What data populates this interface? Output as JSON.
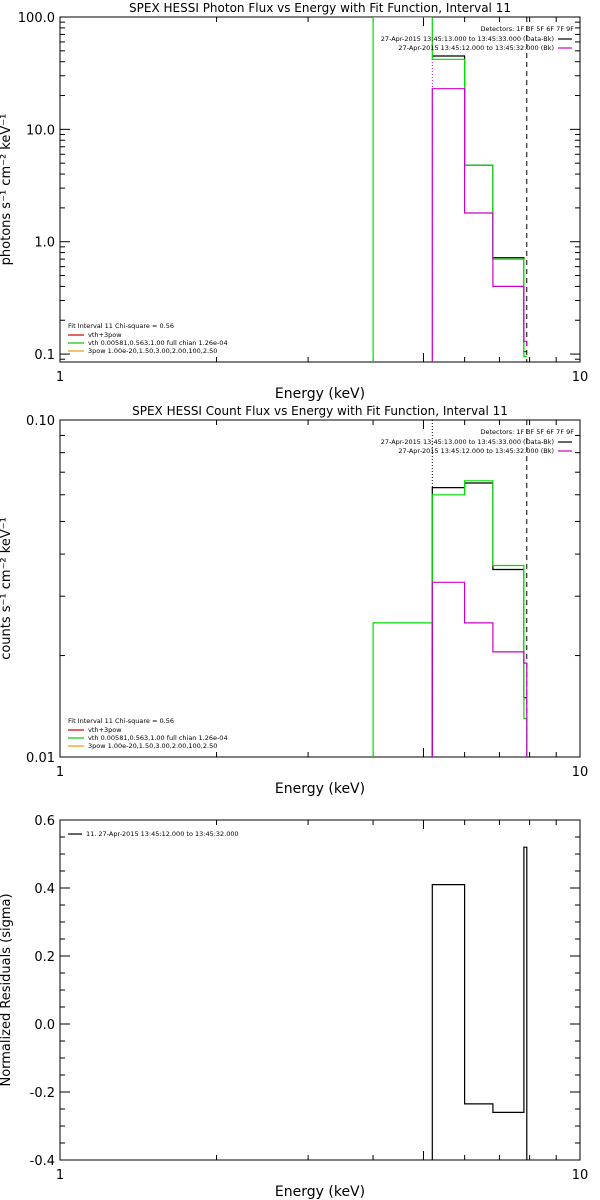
{
  "chart_data": [
    {
      "type": "line",
      "title": "SPEX HESSI Photon Flux vs Energy with Fit Function, Interval 11",
      "xlabel": "Energy (keV)",
      "ylabel": "photons s⁻¹ cm⁻² keV⁻¹",
      "xscale": "log",
      "yscale": "log",
      "xlim": [
        1,
        10
      ],
      "ylim": [
        0.085,
        100
      ],
      "grid": false,
      "xticks": [
        {
          "v": 1,
          "label": "1"
        },
        {
          "v": 10,
          "label": "10"
        }
      ],
      "yticks": [
        {
          "v": 0.1,
          "label": "0.1"
        },
        {
          "v": 1,
          "label": "1.0"
        },
        {
          "v": 10,
          "label": "10.0"
        },
        {
          "v": 100,
          "label": "100.0"
        }
      ],
      "vlines": [
        {
          "x": 5.2,
          "color": "#cc00cc",
          "dash": "dotted"
        },
        {
          "x": 7.9,
          "color": "#000000",
          "dash": "dashed"
        }
      ],
      "series": [
        {
          "color": "#000000",
          "x": [
            5.2,
            6,
            6,
            6.8,
            6.8,
            7.8,
            7.8,
            7.9
          ],
          "y": [
            45,
            45,
            4.8,
            4.8,
            0.72,
            0.72,
            0.105,
            0.105
          ]
        },
        {
          "color": "#00dd00",
          "x": [
            4.0,
            4.0,
            5.2,
            5.2,
            6,
            6,
            6.8,
            6.8,
            7.8,
            7.8,
            7.9
          ],
          "y": [
            0.085,
            100,
            100,
            42,
            42,
            4.8,
            4.8,
            0.7,
            0.7,
            0.095,
            0.095
          ]
        },
        {
          "color": "#cc00cc",
          "x": [
            5.2,
            5.2,
            6,
            6,
            6.8,
            6.8,
            7.8,
            7.8,
            7.9,
            7.9
          ],
          "y": [
            0.085,
            23,
            23,
            1.8,
            1.8,
            0.4,
            0.4,
            0.13,
            0.13,
            0.12
          ]
        }
      ],
      "legend_tr": {
        "header": "Detectors: 1F 3F 5F 6F 7F 9F",
        "items": [
          {
            "text": "27-Apr-2015 13:45:13.000 to 13:45:33.000 (Data-Bk)",
            "color": "#000000"
          },
          {
            "text": "27-Apr-2015 13:45:12.000 to 13:45:32.000 (Bk)",
            "color": "#cc00cc"
          }
        ]
      },
      "legend_bl": {
        "header": "Fit Interval 11   Chi-square = 0.56",
        "items": [
          {
            "text": "vth+3pow",
            "color": "#cc0000"
          },
          {
            "text": "vth 0.00581,0.563,1.00  full chian 1.26e-04",
            "color": "#00cc00"
          },
          {
            "text": "3pow 1.00e-20,1.50,3.00,2.00,100,2.50",
            "color": "#e0a000"
          }
        ]
      }
    },
    {
      "type": "line",
      "title": "SPEX HESSI Count Flux vs Energy with Fit Function, Interval 11",
      "xlabel": "Energy (keV)",
      "ylabel": "counts s⁻¹ cm⁻² keV⁻¹",
      "xscale": "log",
      "yscale": "log",
      "xlim": [
        1,
        10
      ],
      "ylim": [
        0.01,
        0.1
      ],
      "grid": false,
      "xticks": [
        {
          "v": 1,
          "label": "1"
        },
        {
          "v": 10,
          "label": "10"
        }
      ],
      "yticks": [
        {
          "v": 0.01,
          "label": "0.01"
        },
        {
          "v": 0.1,
          "label": "0.10"
        }
      ],
      "vlines": [
        {
          "x": 5.2,
          "color": "#000000",
          "dash": "dotted"
        },
        {
          "x": 7.9,
          "color": "#000000",
          "dash": "dashed"
        }
      ],
      "series": [
        {
          "color": "#000000",
          "x": [
            5.2,
            5.2,
            6,
            6,
            6.8,
            6.8,
            7.8,
            7.8,
            7.9
          ],
          "y": [
            0.01,
            0.063,
            0.063,
            0.065,
            0.065,
            0.036,
            0.036,
            0.015,
            0.015
          ]
        },
        {
          "color": "#00dd00",
          "x": [
            4.0,
            4.0,
            5.2,
            5.2,
            6,
            6,
            6.8,
            6.8,
            7.8,
            7.8,
            7.9,
            7.9
          ],
          "y": [
            0.01,
            0.025,
            0.025,
            0.06,
            0.06,
            0.066,
            0.066,
            0.037,
            0.037,
            0.013,
            0.013,
            0.01
          ]
        },
        {
          "color": "#cc00cc",
          "x": [
            5.2,
            5.2,
            6,
            6,
            6.8,
            6.8,
            7.8,
            7.8,
            7.9,
            7.9
          ],
          "y": [
            0.01,
            0.033,
            0.033,
            0.025,
            0.025,
            0.0205,
            0.0205,
            0.019,
            0.019,
            0.01
          ]
        }
      ],
      "legend_tr": {
        "header": "Detectors: 1F 3F 5F 6F 7F 9F",
        "items": [
          {
            "text": "27-Apr-2015 13:45:13.000 to 13:45:33.000 (Data-Bk)",
            "color": "#000000"
          },
          {
            "text": "27-Apr-2015 13:45:12.000 to 13:45:32.000 (Bk)",
            "color": "#cc00cc"
          }
        ]
      },
      "legend_bl": {
        "header": "Fit Interval 11   Chi-square = 0.56",
        "items": [
          {
            "text": "vth+3pow",
            "color": "#cc0000"
          },
          {
            "text": "vth 0.00581,0.563,1.00  full chian 1.26e-04",
            "color": "#00cc00"
          },
          {
            "text": "3pow 1.00e-20,1.50,3.00,2.00,100,2.50",
            "color": "#e0a000"
          }
        ]
      }
    },
    {
      "type": "line",
      "title": "",
      "xlabel": "Energy (keV)",
      "ylabel": "Normalized Residuals (sigma)",
      "xscale": "log",
      "yscale": "linear",
      "xlim": [
        1,
        10
      ],
      "ylim": [
        -0.4,
        0.6
      ],
      "grid": false,
      "xticks": [
        {
          "v": 1,
          "label": "1"
        },
        {
          "v": 10,
          "label": "10"
        }
      ],
      "yticks": [
        {
          "v": -0.4,
          "label": "-0.4"
        },
        {
          "v": -0.2,
          "label": "-0.2"
        },
        {
          "v": 0,
          "label": "0.0"
        },
        {
          "v": 0.2,
          "label": "0.2"
        },
        {
          "v": 0.4,
          "label": "0.4"
        },
        {
          "v": 0.6,
          "label": "0.6"
        }
      ],
      "vlines": [],
      "series": [
        {
          "color": "#000000",
          "x": [
            5.2,
            5.2,
            6,
            6,
            6.8,
            6.8,
            7.8,
            7.8,
            7.9,
            7.9
          ],
          "y": [
            -0.4,
            0.41,
            0.41,
            -0.235,
            -0.235,
            -0.26,
            -0.26,
            0.52,
            0.52,
            -0.4
          ]
        }
      ],
      "legend_tl": {
        "items": [
          {
            "text": "11. 27-Apr-2015 13:45:12.000 to 13:45:32.000",
            "color": "#000000"
          }
        ]
      }
    }
  ]
}
